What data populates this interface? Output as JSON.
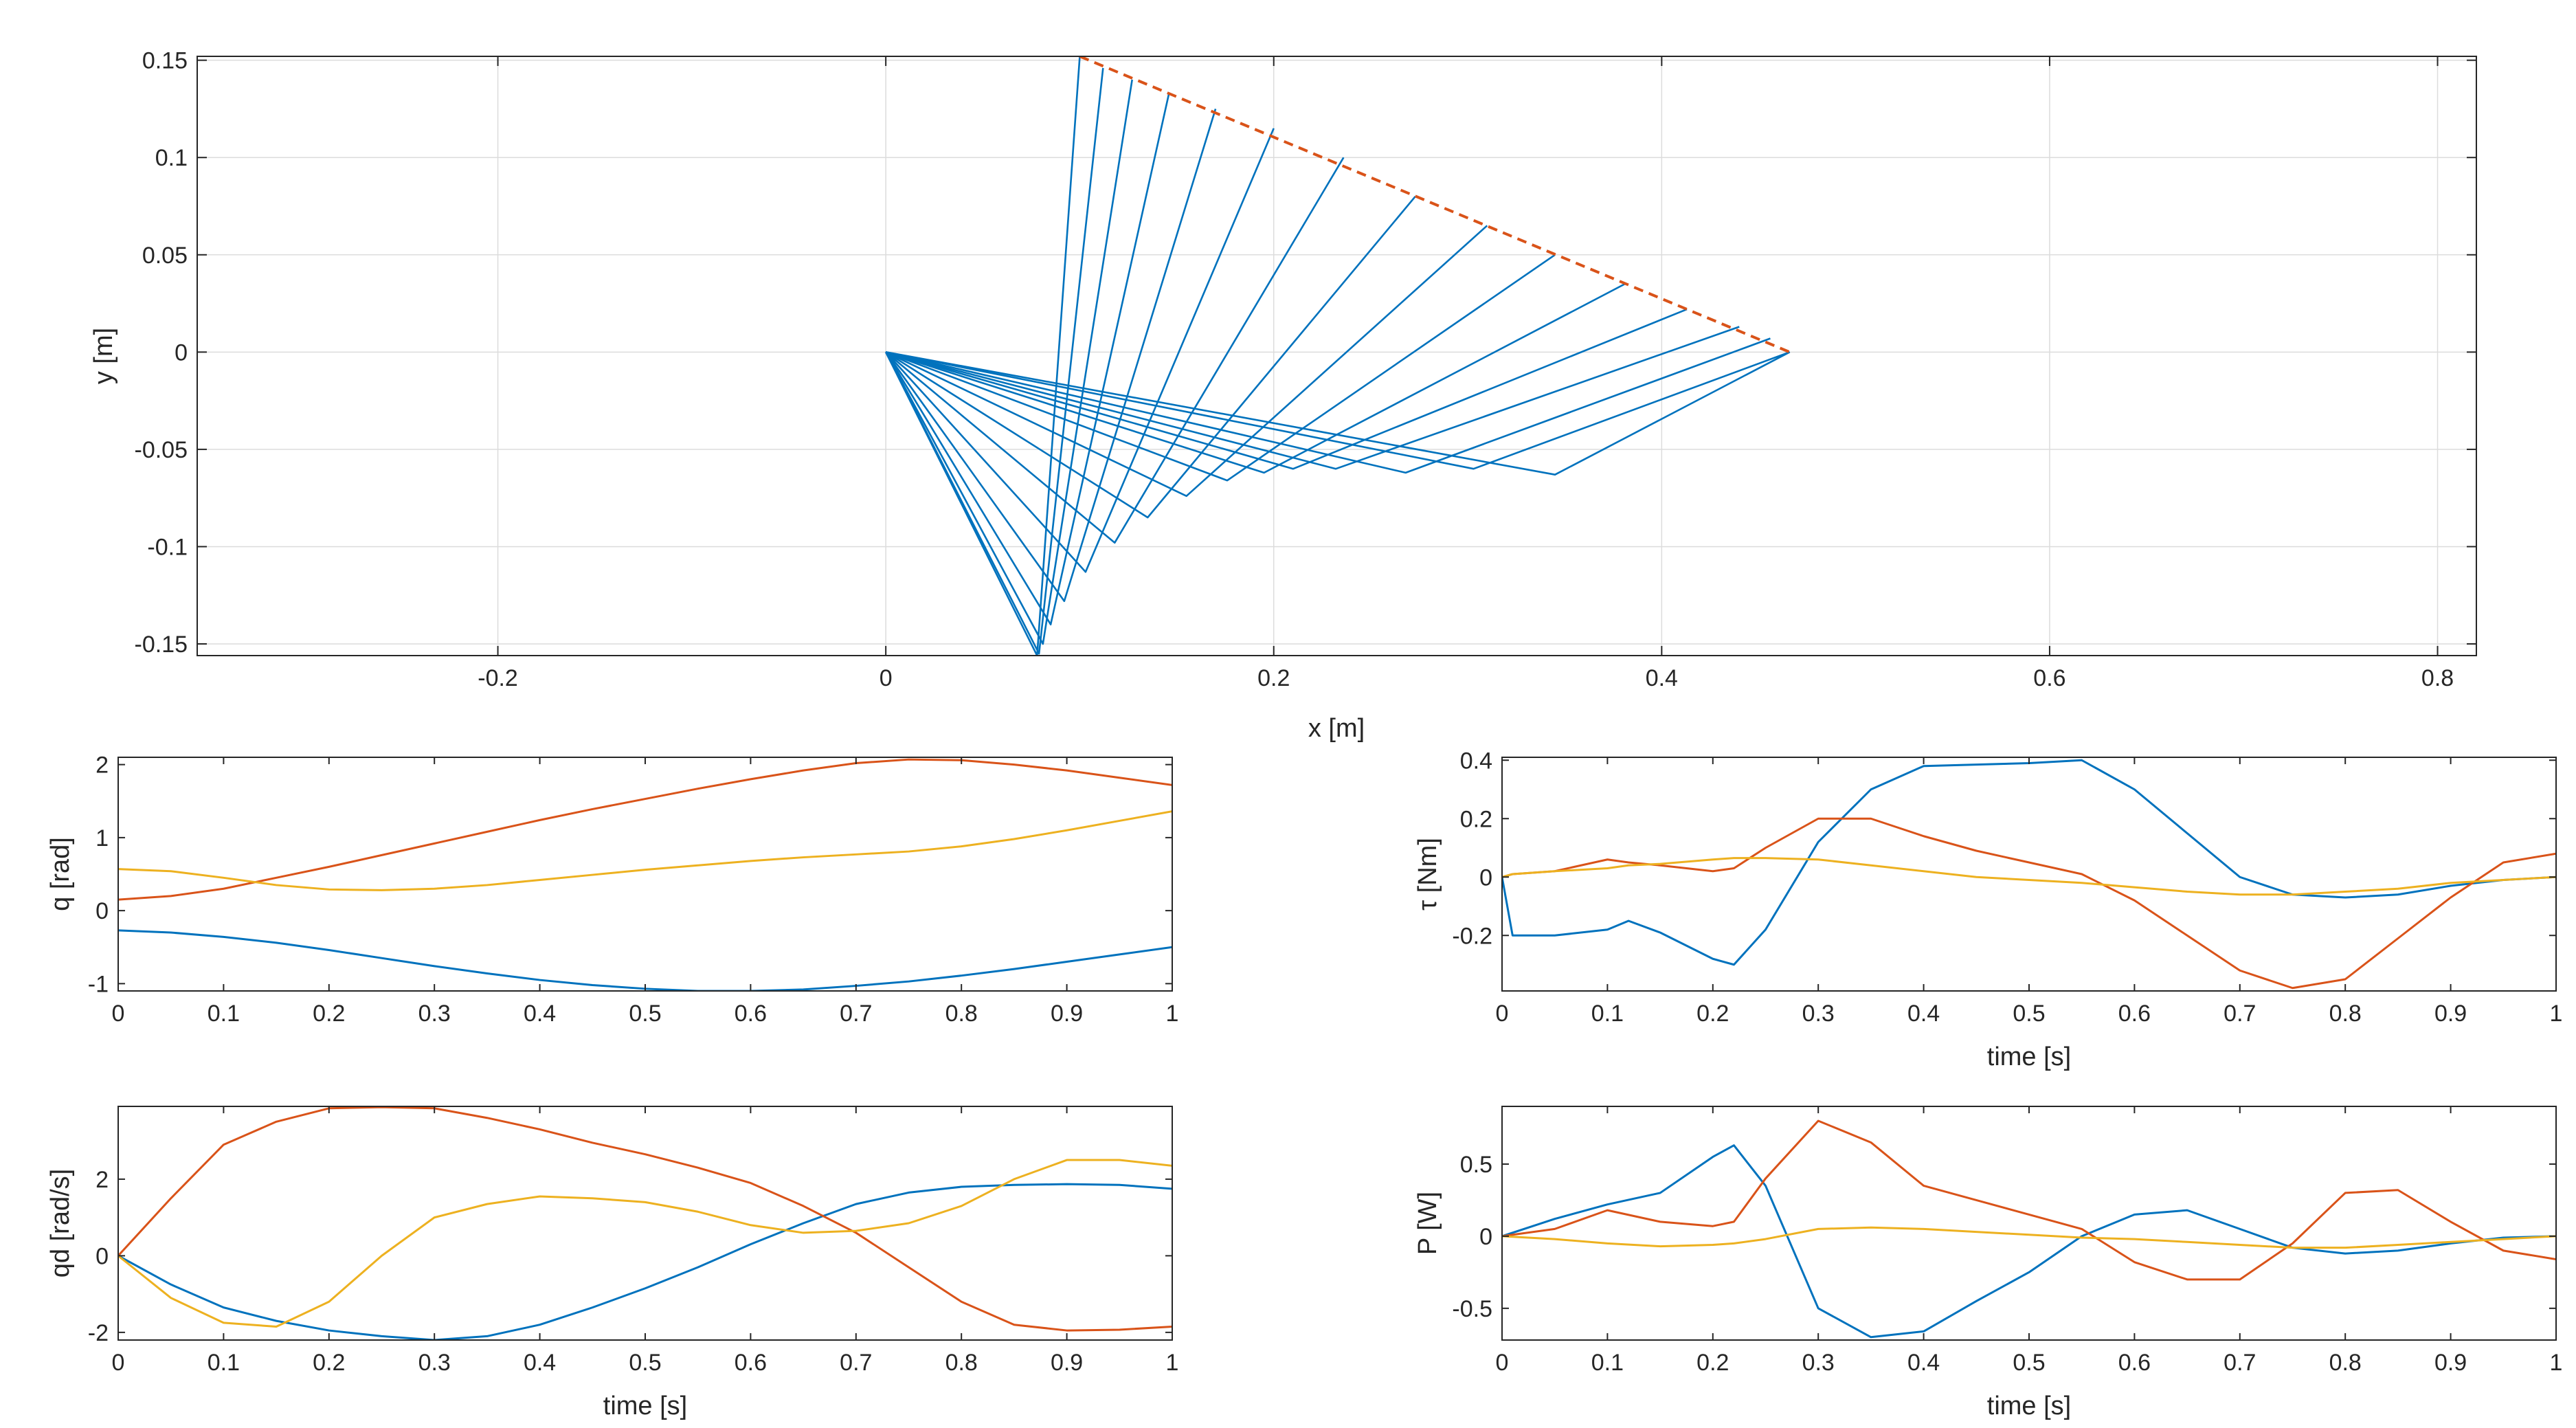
{
  "figure": {
    "background": "#ffffff",
    "grid_color": "#dcdcdc",
    "axis_color": "#262626"
  },
  "chart_data": [
    {
      "id": "arm",
      "type": "line",
      "xlabel": "x [m]",
      "ylabel": "y [m]",
      "xlim": [
        -0.355,
        0.82
      ],
      "ylim": [
        -0.156,
        0.152
      ],
      "xticks": [
        -0.2,
        0,
        0.2,
        0.4,
        0.6,
        0.8
      ],
      "xtick_labels": [
        "-0.2",
        "0",
        "0.2",
        "0.4",
        "0.6",
        "0.8"
      ],
      "yticks": [
        -0.15,
        -0.1,
        -0.05,
        0,
        0.05,
        0.1,
        0.15
      ],
      "ytick_labels": [
        "-0.15",
        "-0.1",
        "-0.05",
        "0",
        "0.05",
        "0.1",
        "0.15"
      ],
      "grid": true,
      "colors": {
        "links": "#0072bd",
        "path": "#d95319"
      },
      "path": {
        "x": [
          0.1,
          0.466
        ],
        "y": [
          0.152,
          0.0
        ],
        "style": "dashed"
      },
      "configurations": [
        [
          [
            0,
            0
          ],
          [
            0.078,
            -0.156
          ],
          [
            0.1,
            0.152
          ]
        ],
        [
          [
            0,
            0
          ],
          [
            0.079,
            -0.155
          ],
          [
            0.112,
            0.146
          ]
        ],
        [
          [
            0,
            0
          ],
          [
            0.081,
            -0.15
          ],
          [
            0.127,
            0.14
          ]
        ],
        [
          [
            0,
            0
          ],
          [
            0.085,
            -0.14
          ],
          [
            0.146,
            0.133
          ]
        ],
        [
          [
            0,
            0
          ],
          [
            0.092,
            -0.128
          ],
          [
            0.17,
            0.125
          ]
        ],
        [
          [
            0,
            0
          ],
          [
            0.103,
            -0.113
          ],
          [
            0.2,
            0.115
          ]
        ],
        [
          [
            0,
            0
          ],
          [
            0.118,
            -0.098
          ],
          [
            0.236,
            0.1
          ]
        ],
        [
          [
            0,
            0
          ],
          [
            0.135,
            -0.085
          ],
          [
            0.273,
            0.08
          ]
        ],
        [
          [
            0,
            0
          ],
          [
            0.155,
            -0.074
          ],
          [
            0.31,
            0.065
          ]
        ],
        [
          [
            0,
            0
          ],
          [
            0.176,
            -0.066
          ],
          [
            0.345,
            0.05
          ]
        ],
        [
          [
            0,
            0
          ],
          [
            0.195,
            -0.062
          ],
          [
            0.381,
            0.035
          ]
        ],
        [
          [
            0,
            0
          ],
          [
            0.21,
            -0.06
          ],
          [
            0.413,
            0.022
          ]
        ],
        [
          [
            0,
            0
          ],
          [
            0.232,
            -0.06
          ],
          [
            0.44,
            0.013
          ]
        ],
        [
          [
            0,
            0
          ],
          [
            0.268,
            -0.062
          ],
          [
            0.456,
            0.007
          ]
        ],
        [
          [
            0,
            0
          ],
          [
            0.303,
            -0.06
          ],
          [
            0.466,
            0.0
          ]
        ],
        [
          [
            0,
            0
          ],
          [
            0.345,
            -0.063
          ],
          [
            0.466,
            0.0
          ]
        ]
      ]
    },
    {
      "id": "q",
      "type": "line",
      "xlabel": "",
      "ylabel": "q [rad]",
      "xlim": [
        0,
        1
      ],
      "ylim": [
        -1.1,
        2.1
      ],
      "xticks": [
        0,
        0.1,
        0.2,
        0.3,
        0.4,
        0.5,
        0.6,
        0.7,
        0.8,
        0.9,
        1
      ],
      "xtick_labels": [
        "0",
        "0.1",
        "0.2",
        "0.3",
        "0.4",
        "0.5",
        "0.6",
        "0.7",
        "0.8",
        "0.9",
        "1"
      ],
      "yticks": [
        -1,
        0,
        1,
        2
      ],
      "ytick_labels": [
        "-1",
        "0",
        "1",
        "2"
      ],
      "grid": false,
      "x": [
        0,
        0.05,
        0.1,
        0.15,
        0.2,
        0.25,
        0.3,
        0.35,
        0.4,
        0.45,
        0.5,
        0.55,
        0.6,
        0.65,
        0.7,
        0.75,
        0.8,
        0.85,
        0.9,
        0.95,
        1
      ],
      "series": [
        {
          "color": "#0072bd",
          "values": [
            -0.27,
            -0.3,
            -0.36,
            -0.44,
            -0.54,
            -0.65,
            -0.76,
            -0.86,
            -0.95,
            -1.02,
            -1.07,
            -1.1,
            -1.1,
            -1.08,
            -1.03,
            -0.97,
            -0.89,
            -0.8,
            -0.7,
            -0.6,
            -0.5
          ]
        },
        {
          "color": "#d95319",
          "values": [
            0.15,
            0.2,
            0.3,
            0.45,
            0.6,
            0.76,
            0.92,
            1.08,
            1.24,
            1.39,
            1.53,
            1.67,
            1.8,
            1.92,
            2.02,
            2.07,
            2.06,
            2.0,
            1.92,
            1.82,
            1.72
          ]
        },
        {
          "color": "#edb120",
          "values": [
            0.57,
            0.54,
            0.45,
            0.35,
            0.29,
            0.28,
            0.3,
            0.35,
            0.42,
            0.49,
            0.56,
            0.62,
            0.68,
            0.73,
            0.77,
            0.81,
            0.88,
            0.98,
            1.1,
            1.23,
            1.36
          ]
        }
      ]
    },
    {
      "id": "qd",
      "type": "line",
      "xlabel": "time [s]",
      "ylabel": "qd [rad/s]",
      "xlim": [
        0,
        1
      ],
      "ylim": [
        -2.2,
        3.9
      ],
      "xticks": [
        0,
        0.1,
        0.2,
        0.3,
        0.4,
        0.5,
        0.6,
        0.7,
        0.8,
        0.9,
        1
      ],
      "xtick_labels": [
        "0",
        "0.1",
        "0.2",
        "0.3",
        "0.4",
        "0.5",
        "0.6",
        "0.7",
        "0.8",
        "0.9",
        "1"
      ],
      "yticks": [
        -2,
        0,
        2
      ],
      "ytick_labels": [
        "-2",
        "0",
        "2"
      ],
      "grid": false,
      "x": [
        0,
        0.05,
        0.1,
        0.15,
        0.2,
        0.25,
        0.3,
        0.35,
        0.4,
        0.45,
        0.5,
        0.55,
        0.6,
        0.65,
        0.7,
        0.75,
        0.8,
        0.85,
        0.9,
        0.95,
        1
      ],
      "series": [
        {
          "color": "#0072bd",
          "values": [
            0.0,
            -0.75,
            -1.35,
            -1.7,
            -1.95,
            -2.1,
            -2.2,
            -2.1,
            -1.8,
            -1.35,
            -0.85,
            -0.3,
            0.3,
            0.85,
            1.35,
            1.65,
            1.8,
            1.85,
            1.87,
            1.85,
            1.75
          ]
        },
        {
          "color": "#d95319",
          "values": [
            0.0,
            1.5,
            2.9,
            3.5,
            3.85,
            3.88,
            3.85,
            3.6,
            3.3,
            2.95,
            2.65,
            2.3,
            1.9,
            1.3,
            0.6,
            -0.3,
            -1.2,
            -1.8,
            -1.95,
            -1.93,
            -1.85
          ]
        },
        {
          "color": "#edb120",
          "values": [
            0.0,
            -1.1,
            -1.75,
            -1.85,
            -1.2,
            0.0,
            1.0,
            1.35,
            1.55,
            1.5,
            1.4,
            1.15,
            0.8,
            0.6,
            0.65,
            0.85,
            1.3,
            2.0,
            2.5,
            2.5,
            2.35
          ]
        }
      ]
    },
    {
      "id": "tau",
      "type": "line",
      "xlabel": "time [s]",
      "ylabel": "τ [Nm]",
      "xlim": [
        0,
        1
      ],
      "ylim": [
        -0.39,
        0.41
      ],
      "xticks": [
        0,
        0.1,
        0.2,
        0.3,
        0.4,
        0.5,
        0.6,
        0.7,
        0.8,
        0.9,
        1
      ],
      "xtick_labels": [
        "0",
        "0.1",
        "0.2",
        "0.3",
        "0.4",
        "0.5",
        "0.6",
        "0.7",
        "0.8",
        "0.9",
        "1"
      ],
      "yticks": [
        -0.2,
        0,
        0.2,
        0.4
      ],
      "ytick_labels": [
        "-0.2",
        "0",
        "0.2",
        "0.4"
      ],
      "grid": false,
      "x": [
        0,
        0.01,
        0.05,
        0.1,
        0.12,
        0.15,
        0.2,
        0.22,
        0.25,
        0.3,
        0.35,
        0.4,
        0.45,
        0.5,
        0.55,
        0.6,
        0.65,
        0.7,
        0.75,
        0.8,
        0.85,
        0.9,
        0.95,
        1
      ],
      "series": [
        {
          "color": "#0072bd",
          "values": [
            0.0,
            -0.2,
            -0.2,
            -0.18,
            -0.15,
            -0.19,
            -0.28,
            -0.3,
            -0.18,
            0.12,
            0.3,
            0.38,
            0.385,
            0.39,
            0.4,
            0.3,
            0.15,
            0.0,
            -0.06,
            -0.07,
            -0.06,
            -0.03,
            -0.01,
            0.0
          ]
        },
        {
          "color": "#d95319",
          "values": [
            0.0,
            0.01,
            0.02,
            0.06,
            0.05,
            0.04,
            0.02,
            0.03,
            0.1,
            0.2,
            0.2,
            0.14,
            0.09,
            0.05,
            0.01,
            -0.08,
            -0.2,
            -0.32,
            -0.38,
            -0.35,
            -0.21,
            -0.07,
            0.05,
            0.08
          ]
        },
        {
          "color": "#edb120",
          "values": [
            0.0,
            0.01,
            0.02,
            0.03,
            0.04,
            0.045,
            0.06,
            0.065,
            0.065,
            0.06,
            0.04,
            0.02,
            0.0,
            -0.01,
            -0.02,
            -0.035,
            -0.05,
            -0.06,
            -0.06,
            -0.05,
            -0.04,
            -0.02,
            -0.01,
            0.0
          ]
        }
      ]
    },
    {
      "id": "power",
      "type": "line",
      "xlabel": "time [s]",
      "ylabel": "P [W]",
      "xlim": [
        0,
        1
      ],
      "ylim": [
        -0.72,
        0.9
      ],
      "xticks": [
        0,
        0.1,
        0.2,
        0.3,
        0.4,
        0.5,
        0.6,
        0.7,
        0.8,
        0.9,
        1
      ],
      "xtick_labels": [
        "0",
        "0.1",
        "0.2",
        "0.3",
        "0.4",
        "0.5",
        "0.6",
        "0.7",
        "0.8",
        "0.9",
        "1"
      ],
      "yticks": [
        -0.5,
        0,
        0.5
      ],
      "ytick_labels": [
        "-0.5",
        "0",
        "0.5"
      ],
      "grid": false,
      "x": [
        0,
        0.05,
        0.1,
        0.15,
        0.2,
        0.22,
        0.25,
        0.3,
        0.35,
        0.4,
        0.45,
        0.5,
        0.55,
        0.6,
        0.65,
        0.7,
        0.75,
        0.8,
        0.85,
        0.9,
        0.95,
        1
      ],
      "series": [
        {
          "color": "#0072bd",
          "values": [
            0.0,
            0.12,
            0.22,
            0.3,
            0.55,
            0.63,
            0.35,
            -0.5,
            -0.7,
            -0.66,
            -0.45,
            -0.25,
            0.0,
            0.15,
            0.18,
            0.05,
            -0.08,
            -0.12,
            -0.1,
            -0.05,
            -0.01,
            0.0
          ]
        },
        {
          "color": "#d95319",
          "values": [
            0.0,
            0.05,
            0.18,
            0.1,
            0.07,
            0.1,
            0.4,
            0.8,
            0.65,
            0.35,
            0.25,
            0.15,
            0.05,
            -0.18,
            -0.3,
            -0.3,
            -0.05,
            0.3,
            0.32,
            0.1,
            -0.1,
            -0.16
          ]
        },
        {
          "color": "#edb120",
          "values": [
            0.0,
            -0.02,
            -0.05,
            -0.07,
            -0.06,
            -0.05,
            -0.02,
            0.05,
            0.06,
            0.05,
            0.03,
            0.01,
            -0.01,
            -0.02,
            -0.04,
            -0.06,
            -0.08,
            -0.08,
            -0.06,
            -0.04,
            -0.02,
            0.0
          ]
        }
      ]
    }
  ]
}
